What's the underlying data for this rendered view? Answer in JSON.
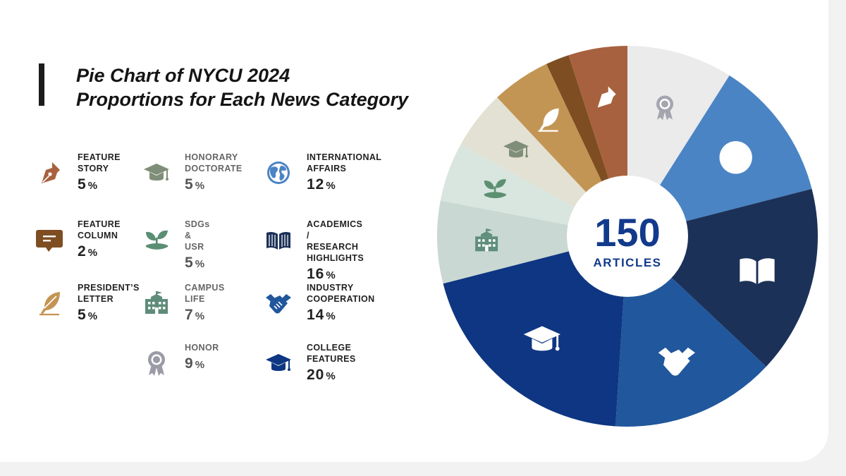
{
  "title": {
    "line1": "Pie Chart of NYCU 2024",
    "line2": "Proportions for Each News Category"
  },
  "center": {
    "total": "150",
    "label": "ARTICLES"
  },
  "legend": [
    {
      "name": "FEATURE\nSTORY",
      "value": "5",
      "unit": "%",
      "icon": "fountain-pen-icon",
      "color": "#a8613e",
      "muted": false
    },
    {
      "name": "FEATURE\nCOLUMN",
      "value": "2",
      "unit": "%",
      "icon": "message-icon",
      "color": "#7e4e22",
      "muted": false
    },
    {
      "name": "PRESIDENT’S\nLETTER",
      "value": "5",
      "unit": "%",
      "icon": "quill-icon",
      "color": "#c39554",
      "muted": false
    },
    {
      "name": "HONORARY\nDOCTORATE",
      "value": "5",
      "unit": "%",
      "icon": "graduation-cap-icon",
      "color": "#7f8e78",
      "muted": true
    },
    {
      "name": "SDGs & USR",
      "value": "5",
      "unit": "%",
      "icon": "sprout-icon",
      "color": "#5b8e73",
      "muted": true
    },
    {
      "name": "CAMPUS LIFE",
      "value": "7",
      "unit": "%",
      "icon": "school-building-icon",
      "color": "#5e8c7a",
      "muted": true
    },
    {
      "name": "HONOR",
      "value": "9",
      "unit": "%",
      "icon": "award-ribbon-icon",
      "color": "#9b9ba6",
      "muted": true
    },
    {
      "name": "INTERNATIONAL\nAFFAIRS",
      "value": "12",
      "unit": "%",
      "icon": "globe-icon",
      "color": "#4a84c4",
      "muted": false
    },
    {
      "name": "ACADEMICS /\nRESEARCH HIGHLIGHTS",
      "value": "16",
      "unit": "%",
      "icon": "open-book-icon",
      "color": "#1c3158",
      "muted": false
    },
    {
      "name": "INDUSTRY\nCOOPERATION",
      "value": "14",
      "unit": "%",
      "icon": "handshake-icon",
      "color": "#21579c",
      "muted": false
    },
    {
      "name": "COLLEGE FEATURES",
      "value": "20",
      "unit": "%",
      "icon": "graduation-cap-icon",
      "color": "#0e3682",
      "muted": false
    }
  ],
  "chart_data": {
    "type": "pie",
    "categories": [
      "Honor",
      "International Affairs",
      "Academics / Research Highlights",
      "Industry Cooperation",
      "College Features",
      "Campus Life",
      "SDGs & USR",
      "Honorary Doctorate",
      "President’s Letter",
      "Feature Column",
      "Feature Story"
    ],
    "values": [
      9,
      12,
      16,
      14,
      20,
      7,
      5,
      5,
      5,
      2,
      5
    ],
    "colors": [
      "#ebebeb",
      "#4a84c4",
      "#1c3158",
      "#21579c",
      "#0e3682",
      "#c9d8d3",
      "#d8e6df",
      "#e3e1d3",
      "#c39554",
      "#7e4e22",
      "#a8613e"
    ],
    "icons": [
      "award-ribbon-icon",
      "globe-icon",
      "open-book-icon",
      "handshake-icon",
      "graduation-cap-icon",
      "school-building-icon",
      "sprout-icon",
      "graduation-cap-icon",
      "quill-icon",
      "",
      "fountain-pen-icon"
    ],
    "icon_colors": [
      "#a5a5b0",
      "#ffffff",
      "#ffffff",
      "#ffffff",
      "#ffffff",
      "#5f8e7c",
      "#5d9072",
      "#7f8e78",
      "#ffffff",
      "",
      "#ffffff"
    ],
    "start": "12 o'clock, clockwise",
    "center_label": "150 ARTICLES"
  }
}
